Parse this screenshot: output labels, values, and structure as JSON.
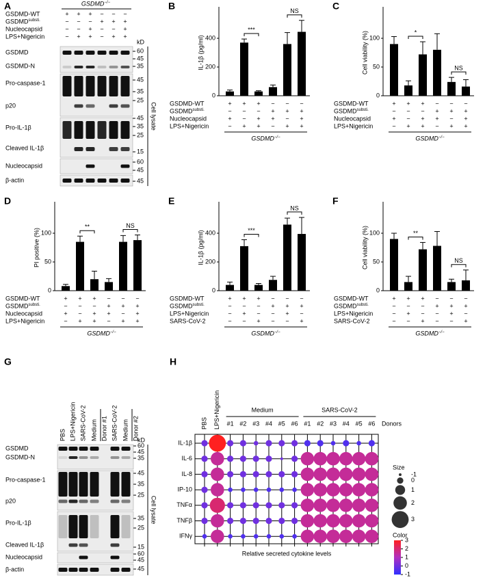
{
  "panel_a": {
    "label": "A",
    "group_label": {
      "text": "GSDMD",
      "sup": "−/−"
    },
    "conditions": [
      {
        "name": "GSDMD-WT",
        "signs": [
          "+",
          "+",
          "+",
          "−",
          "−",
          "−"
        ]
      },
      {
        "name": "GSDMD",
        "sup": "substi.",
        "signs": [
          "−",
          "−",
          "−",
          "+",
          "+",
          "+"
        ]
      },
      {
        "name": "Nucleocapsid",
        "signs": [
          "−",
          "−",
          "+",
          "−",
          "−",
          "+"
        ]
      },
      {
        "name": "LPS+Nigericin",
        "signs": [
          "−",
          "+",
          "+",
          "−",
          "+",
          "+"
        ]
      }
    ],
    "blots": [
      "GSDMD",
      "GSDMD-N",
      "Pro-caspase-1",
      "p20",
      "Pro-IL-1β",
      "Cleaved IL-1β",
      "Nucleocapsid",
      "β-actin"
    ],
    "kd_unit": "kD",
    "kd_markers": [
      60,
      45,
      35,
      45,
      35,
      25,
      45,
      35,
      25,
      15,
      60,
      45,
      45
    ],
    "side_label": "Cell lysate"
  },
  "chart_data": [
    {
      "type": "bar",
      "label": "B",
      "ylabel": "IL-1β (pg/ml)",
      "ylim": [
        0,
        600
      ],
      "yticks": [
        0,
        200,
        400
      ],
      "color": "#000000",
      "values": [
        30,
        370,
        30,
        60,
        360,
        445
      ],
      "errors": [
        10,
        25,
        5,
        15,
        80,
        80
      ],
      "annotations": [
        "***",
        "NS"
      ],
      "conditions": [
        {
          "name": "GSDMD-WT",
          "signs": [
            "+",
            "+",
            "+",
            "−",
            "−",
            "−"
          ]
        },
        {
          "name": "GSDMD",
          "sup": "substi.",
          "signs": [
            "−",
            "−",
            "−",
            "+",
            "+",
            "+"
          ]
        },
        {
          "name": "Nucleocapsid",
          "signs": [
            "+",
            "−",
            "+",
            "+",
            "−",
            "+"
          ]
        },
        {
          "name": "LPS+Nigericin",
          "signs": [
            "−",
            "+",
            "+",
            "−",
            "+",
            "+"
          ]
        }
      ],
      "group_label": {
        "text": "GSDMD",
        "sup": "−/−"
      }
    },
    {
      "type": "bar",
      "label": "C",
      "ylabel": "Cell viability (%)",
      "ylim": [
        0,
        150
      ],
      "yticks": [
        0,
        50,
        100
      ],
      "color": "#000000",
      "values": [
        90,
        18,
        72,
        80,
        24,
        16
      ],
      "errors": [
        13,
        8,
        22,
        28,
        8,
        12
      ],
      "annotations": [
        "*",
        "NS"
      ],
      "conditions": [
        {
          "name": "GSDMD-WT",
          "signs": [
            "+",
            "+",
            "+",
            "−",
            "−",
            "−"
          ]
        },
        {
          "name": "GSDMD",
          "sup": "substi.",
          "signs": [
            "−",
            "−",
            "−",
            "+",
            "+",
            "+"
          ]
        },
        {
          "name": "Nucleocapsid",
          "signs": [
            "+",
            "−",
            "+",
            "+",
            "−",
            "+"
          ]
        },
        {
          "name": "LPS+Nigericin",
          "signs": [
            "−",
            "+",
            "+",
            "−",
            "+",
            "+"
          ]
        }
      ],
      "group_label": {
        "text": "GSDMD",
        "sup": "−/−"
      }
    },
    {
      "type": "bar",
      "label": "D",
      "ylabel": "PI positive (%)",
      "ylim": [
        0,
        150
      ],
      "yticks": [
        0,
        50,
        100
      ],
      "color": "#000000",
      "values": [
        8,
        85,
        20,
        15,
        85,
        88
      ],
      "errors": [
        3,
        10,
        14,
        6,
        11,
        9
      ],
      "annotations": [
        "**",
        "NS"
      ],
      "conditions": [
        {
          "name": "GSDMD-WT",
          "signs": [
            "+",
            "+",
            "+",
            "−",
            "−",
            "−"
          ]
        },
        {
          "name": "GSDMD",
          "sup": "substi.",
          "signs": [
            "−",
            "−",
            "−",
            "+",
            "+",
            "+"
          ]
        },
        {
          "name": "Nucleocapsid",
          "signs": [
            "+",
            "−",
            "+",
            "+",
            "−",
            "+"
          ]
        },
        {
          "name": "LPS+Nigericin",
          "signs": [
            "−",
            "+",
            "+",
            "−",
            "+",
            "+"
          ]
        }
      ],
      "group_label": {
        "text": "GSDMD",
        "sup": "−/−"
      }
    },
    {
      "type": "bar",
      "label": "E",
      "ylabel": "IL-1β (pg/ml)",
      "ylim": [
        0,
        600
      ],
      "yticks": [
        0,
        200,
        400
      ],
      "color": "#000000",
      "values": [
        40,
        310,
        40,
        75,
        460,
        395
      ],
      "errors": [
        20,
        45,
        10,
        25,
        45,
        115
      ],
      "annotations": [
        "***",
        "NS"
      ],
      "conditions": [
        {
          "name": "GSDMD-WT",
          "signs": [
            "+",
            "+",
            "+",
            "−",
            "−",
            "−"
          ]
        },
        {
          "name": "GSDMD",
          "sup": "substi.",
          "signs": [
            "−",
            "−",
            "−",
            "+",
            "+",
            "+"
          ]
        },
        {
          "name": "LPS+Nigericin",
          "signs": [
            "−",
            "+",
            "−",
            "−",
            "+",
            "−"
          ]
        },
        {
          "name": "SARS-CoV-2",
          "signs": [
            "−",
            "−",
            "+",
            "−",
            "−",
            "+"
          ]
        }
      ],
      "group_label": {
        "text": "GSDMD",
        "sup": "−/−"
      }
    },
    {
      "type": "bar",
      "label": "F",
      "ylabel": "Cell viability (%)",
      "ylim": [
        0,
        150
      ],
      "yticks": [
        0,
        50,
        100
      ],
      "color": "#000000",
      "values": [
        90,
        15,
        72,
        78,
        15,
        18
      ],
      "errors": [
        10,
        10,
        12,
        25,
        5,
        18
      ],
      "annotations": [
        "**",
        "NS"
      ],
      "conditions": [
        {
          "name": "GSDMD-WT",
          "signs": [
            "+",
            "+",
            "+",
            "−",
            "−",
            "−"
          ]
        },
        {
          "name": "GSDMD",
          "sup": "substi.",
          "signs": [
            "−",
            "−",
            "−",
            "+",
            "+",
            "+"
          ]
        },
        {
          "name": "LPS+Nigericin",
          "signs": [
            "−",
            "+",
            "−",
            "−",
            "+",
            "−"
          ]
        },
        {
          "name": "SARS-CoV-2",
          "signs": [
            "−",
            "−",
            "+",
            "−",
            "−",
            "+"
          ]
        }
      ],
      "group_label": {
        "text": "GSDMD",
        "sup": "−/−"
      }
    },
    {
      "type": "dot",
      "label": "H",
      "columns": [
        "PBS",
        "LPS+Nigericin",
        "#1",
        "#2",
        "#3",
        "#4",
        "#5",
        "#6",
        "#1",
        "#2",
        "#3",
        "#4",
        "#5",
        "#6"
      ],
      "column_groups": [
        "Medium",
        "SARS-CoV-2"
      ],
      "column_group_label": "Donors",
      "rows": [
        "IL-1β",
        "IL-6",
        "IL-8",
        "IP-10",
        "TNFα",
        "TNFβ",
        "IFNγ"
      ],
      "color_values": [
        [
          0,
          3,
          0,
          0,
          0,
          0,
          0,
          0,
          -0.5,
          -0.5,
          -0.5,
          -0.5,
          -0.5,
          -0.5
        ],
        [
          0,
          1.5,
          0,
          0,
          0,
          0,
          0,
          0,
          1.5,
          1.5,
          1.5,
          1.5,
          1.5,
          1.5
        ],
        [
          0,
          1.5,
          0,
          0,
          0,
          0,
          0,
          0,
          1.5,
          1.5,
          1.5,
          1.5,
          1.5,
          1.5
        ],
        [
          0,
          1.5,
          -0.5,
          -0.5,
          -0.5,
          -0.5,
          -0.5,
          -0.5,
          1.5,
          1.5,
          1.5,
          1.5,
          1.5,
          1.5
        ],
        [
          0,
          2,
          0,
          0,
          0,
          0,
          0,
          0,
          1.5,
          1.5,
          1.5,
          1.5,
          1.5,
          1.5
        ],
        [
          0,
          1.5,
          0,
          0,
          0,
          0,
          0,
          0,
          1.5,
          1.5,
          1.5,
          1.5,
          1.5,
          1.5
        ],
        [
          -0.5,
          1.5,
          -0.5,
          -0.5,
          -0.5,
          -0.5,
          -0.5,
          -0.5,
          1.5,
          1.5,
          1.5,
          1.5,
          1.5,
          1.5
        ]
      ],
      "size_values": [
        [
          0,
          3,
          0,
          0,
          -0.5,
          0,
          0,
          0,
          0,
          0,
          -0.5,
          0,
          -0.5,
          0
        ],
        [
          0,
          2,
          0,
          0,
          0,
          0,
          -1,
          0,
          2,
          2,
          2,
          2,
          2,
          2
        ],
        [
          0,
          2,
          0,
          0,
          0,
          0,
          0,
          0,
          2,
          2,
          2,
          2,
          2,
          2
        ],
        [
          0,
          2,
          -0.5,
          -0.5,
          -0.5,
          -0.5,
          -0.5,
          -0.5,
          2,
          2,
          2,
          2,
          2,
          2
        ],
        [
          0,
          2.5,
          0,
          0,
          0,
          0,
          0,
          0,
          2,
          2,
          2,
          2,
          2,
          2
        ],
        [
          0,
          2,
          0,
          0,
          0,
          0,
          0,
          0,
          2,
          2,
          2,
          2,
          2,
          2
        ],
        [
          -0.5,
          2,
          -0.5,
          -0.5,
          -0.5,
          -0.5,
          -0.5,
          -0.5,
          2,
          2,
          2,
          2,
          2,
          2
        ]
      ],
      "xlabel": "Relative secreted cytokine levels",
      "size_legend": {
        "title": "Size",
        "values": [
          -1,
          0,
          1,
          2,
          3
        ]
      },
      "color_legend": {
        "title": "Color",
        "ticks": [
          3,
          2,
          1,
          0,
          -1
        ],
        "lim": [
          -1,
          3
        ],
        "colors": [
          "#3030ff",
          "#b030c0",
          "#ff2020"
        ]
      }
    }
  ],
  "panel_g": {
    "label": "G",
    "lanes": [
      "PBS",
      "LPS+Nigericin",
      "SARS-CoV-2",
      "Medium",
      "SARS-CoV-2",
      "Medium"
    ],
    "donors": [
      "Donor #1",
      "Donor #2"
    ],
    "blots": [
      "GSDMD",
      "GSDMD-N",
      "Pro-caspase-1",
      "p20",
      "Pro-IL-1β",
      "Cleaved IL-1β",
      "Nucleocapsid",
      "β-actin"
    ],
    "kd_unit": "kD",
    "kd_markers": [
      60,
      45,
      35,
      45,
      35,
      25,
      35,
      25,
      15,
      60,
      45,
      45
    ],
    "side_label": "Cell lysate"
  }
}
